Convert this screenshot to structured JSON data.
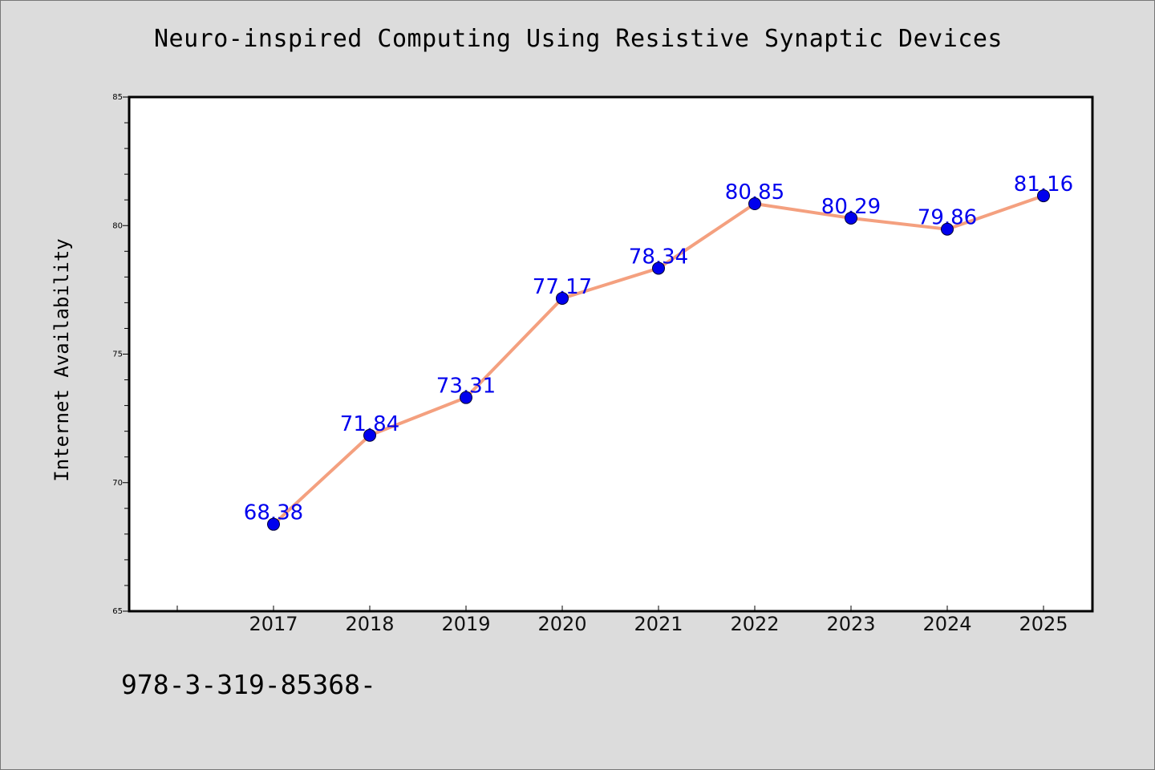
{
  "chart_data": {
    "type": "line",
    "title": "Neuro-inspired Computing Using Resistive Synaptic Devices",
    "xlabel": "",
    "ylabel": "Internet Availability",
    "categories": [
      "2017",
      "2018",
      "2019",
      "2020",
      "2021",
      "2022",
      "2023",
      "2024",
      "2025"
    ],
    "series": [
      {
        "values": [
          68.38,
          71.84,
          73.31,
          77.17,
          78.34,
          80.85,
          80.29,
          79.86,
          81.16
        ],
        "data_labels": [
          "68.38",
          "71.84",
          "73.31",
          "77.17",
          "78.34",
          "80.85",
          "80.29",
          "79.86",
          "81.16"
        ]
      }
    ],
    "ylim": [
      65,
      85
    ],
    "yticks": [
      65,
      70,
      75,
      80,
      85
    ],
    "ytick_labels": [
      "65",
      "70",
      "75",
      "80",
      "85"
    ],
    "grid": false,
    "legend": "none",
    "colors": {
      "line": "#f4a07f",
      "marker": "#0000ee",
      "data_label": "#0000ee",
      "background": "#dcdcdc",
      "plot_background": "#ffffff"
    }
  },
  "footer": {
    "isbn": "978-3-319-85368-"
  }
}
